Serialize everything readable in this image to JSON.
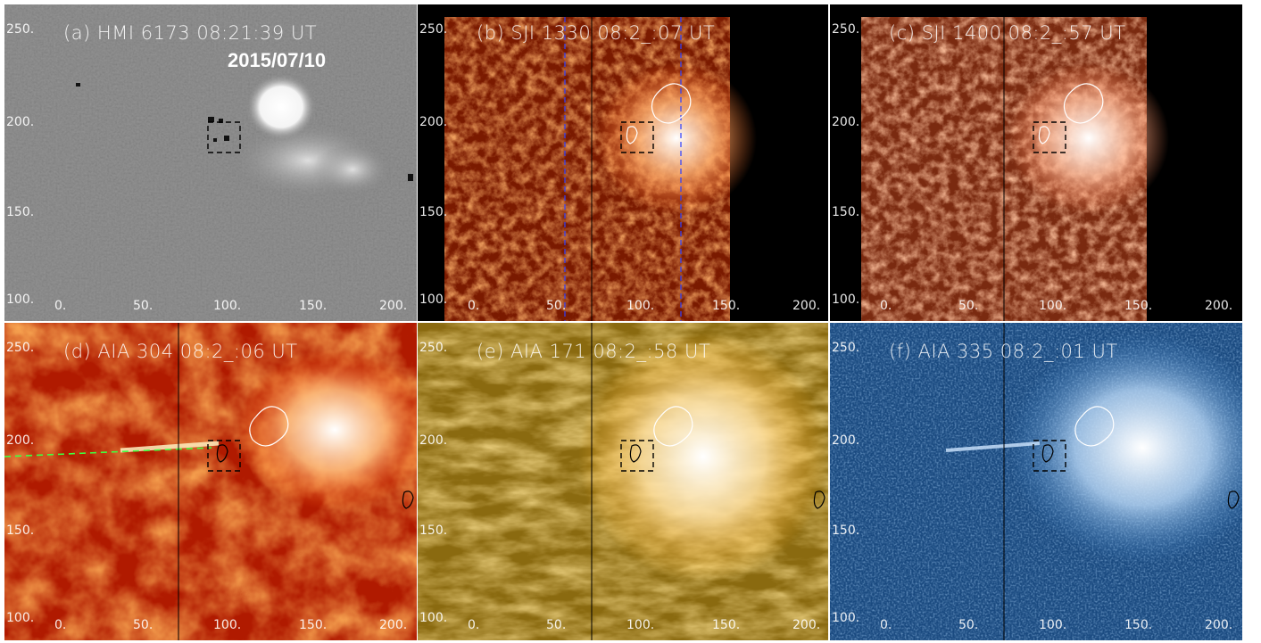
{
  "figure": {
    "date": "2015/07/10",
    "panels": [
      {
        "id": "a",
        "title": "(a) HMI 6173 08:21:39 UT",
        "style": "hmi",
        "colors": [
          "#2a2a2a",
          "#7f7f7f",
          "#ffffff"
        ]
      },
      {
        "id": "b",
        "title": "(b) SJI 1330 08:2_:07 UT",
        "style": "sji",
        "colors": [
          "#1a0300",
          "#7a1a00",
          "#ff9a55",
          "#ffffff"
        ]
      },
      {
        "id": "c",
        "title": "(c) SJI 1400 08:2_:57 UT",
        "style": "sji",
        "colors": [
          "#1c0600",
          "#7a2a10",
          "#ffa070",
          "#ffffff"
        ]
      },
      {
        "id": "d",
        "title": "(d) AIA 304 08:2_:06 UT",
        "style": "aia",
        "colors": [
          "#300000",
          "#b01a00",
          "#ff7a20",
          "#ffffff"
        ]
      },
      {
        "id": "e",
        "title": "(e) AIA 171 08:2_:58 UT",
        "style": "aia",
        "colors": [
          "#2a1e00",
          "#8a6a10",
          "#ffb020",
          "#ffffff"
        ]
      },
      {
        "id": "f",
        "title": "(f) AIA 335 08:2_:01 UT",
        "style": "aia",
        "colors": [
          "#000a20",
          "#1a4a80",
          "#7ab0e0",
          "#ffffff"
        ]
      }
    ],
    "axes": {
      "x_ticks": [
        "0.",
        "50.",
        "100.",
        "150.",
        "200."
      ],
      "y_ticks": [
        "250.",
        "200.",
        "150.",
        "100."
      ]
    }
  }
}
